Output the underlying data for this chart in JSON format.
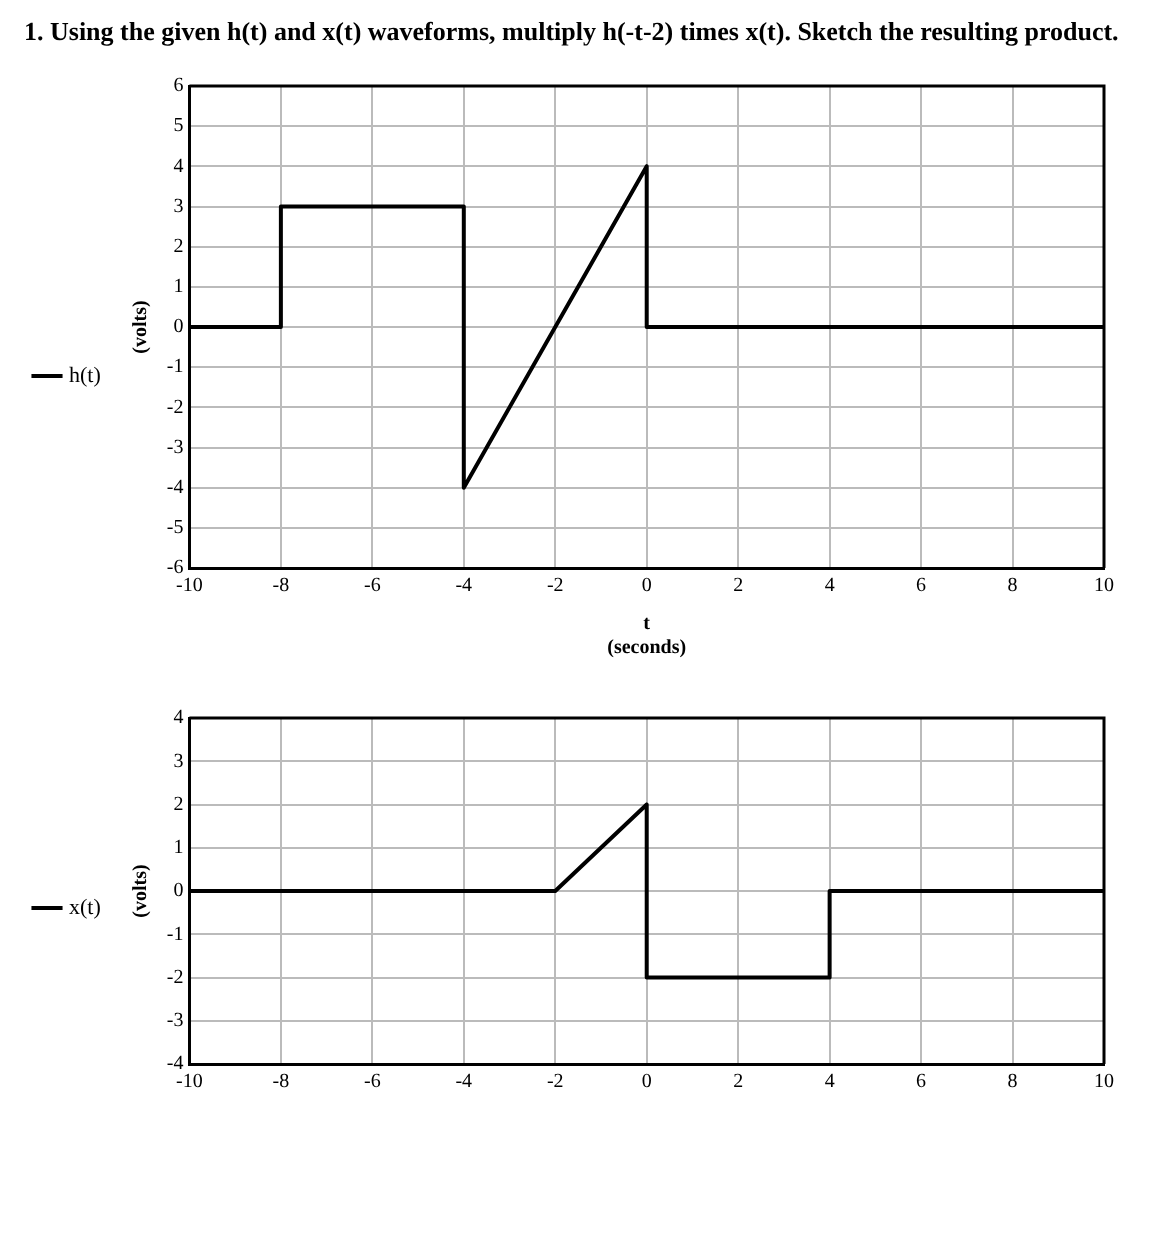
{
  "chart_data": [
    {
      "type": "line",
      "title": "1. Using the given h(t) and x(t) waveforms, multiply h(-t-2) times x(t). Sketch the resulting product.",
      "xlabel": "t\n(seconds)",
      "ylabel": "(volts)",
      "series": [
        {
          "name": "h(t)",
          "color": "#000000",
          "x": [
            -10,
            -8,
            -8,
            -4,
            -4,
            0,
            0,
            10
          ],
          "values": [
            0,
            0,
            3,
            3,
            -4,
            4,
            0,
            0
          ]
        }
      ],
      "xlim": [
        -10,
        10
      ],
      "xticks": [
        -10,
        -8,
        -6,
        -4,
        -2,
        0,
        2,
        4,
        6,
        8,
        10
      ],
      "ylim": [
        -6,
        6
      ],
      "yticks": [
        -6,
        -5,
        -4,
        -3,
        -2,
        -1,
        0,
        1,
        2,
        3,
        4,
        5,
        6
      ],
      "grid": true,
      "legend": "left",
      "marker": "none",
      "line_style": "solid"
    },
    {
      "type": "line",
      "ylabel": "(volts)",
      "series": [
        {
          "name": "x(t)",
          "color": "#000000",
          "x": [
            -10,
            -2,
            0,
            0,
            4,
            4,
            10
          ],
          "values": [
            0,
            0,
            2,
            -2,
            -2,
            0,
            0
          ]
        }
      ],
      "xlim": [
        -10,
        10
      ],
      "xticks": [
        -10,
        -8,
        -6,
        -4,
        -2,
        0,
        2,
        4,
        6,
        8,
        10
      ],
      "ylim": [
        -4,
        4
      ],
      "yticks": [
        -4,
        -3,
        -2,
        -1,
        0,
        1,
        2,
        3,
        4
      ],
      "grid": true,
      "legend": "left",
      "marker": "none",
      "line_style": "solid"
    }
  ]
}
